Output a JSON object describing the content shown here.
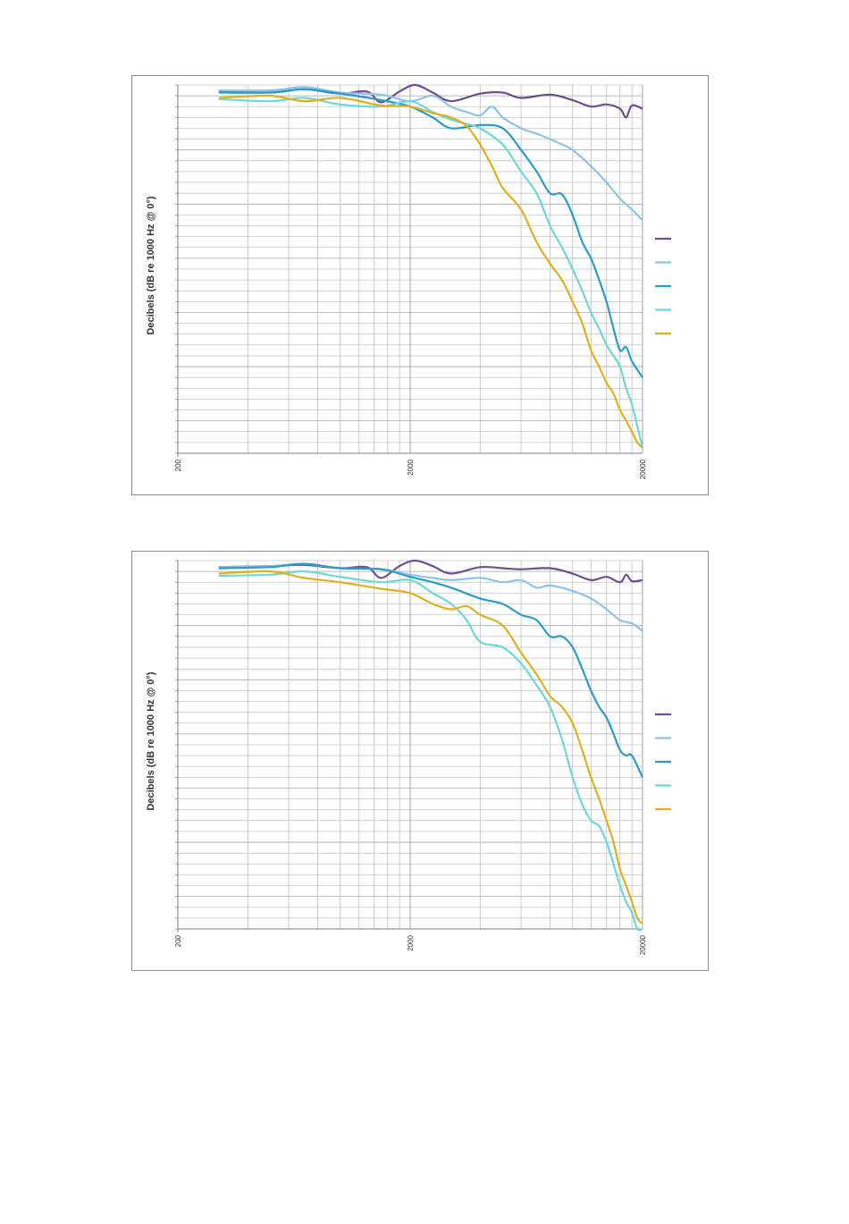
{
  "chart_data": [
    {
      "type": "line",
      "ylabel": "Decibels (dB re 1000 Hz @ 0°)",
      "xscale": "log",
      "xlim": [
        200,
        20000
      ],
      "xticks": [
        "200",
        "2000",
        "20000"
      ],
      "ylim": [
        -33,
        1
      ],
      "grid": true,
      "legend_position": "right",
      "series": [
        {
          "color": "#6b4f8f",
          "x": [
            300,
            500,
            700,
            1000,
            1300,
            1500,
            1800,
            2100,
            2500,
            3000,
            4000,
            5000,
            6000,
            8000,
            10000,
            12000,
            14000,
            16000,
            17000,
            18000,
            20000
          ],
          "y": [
            0.4,
            0.3,
            0.6,
            0.2,
            0.4,
            -0.6,
            0.4,
            1.0,
            0.3,
            -0.5,
            0.2,
            0.3,
            -0.2,
            0.1,
            -0.4,
            -1.0,
            -0.8,
            -1.2,
            -2.0,
            -0.9,
            -1.2
          ]
        },
        {
          "color": "#8cc4e8",
          "x": [
            300,
            500,
            700,
            1000,
            1500,
            2000,
            2500,
            3000,
            3500,
            4000,
            4500,
            5000,
            6000,
            7000,
            8000,
            9000,
            10000,
            12000,
            14000,
            16000,
            18000,
            20000
          ],
          "y": [
            0.5,
            0.5,
            0.8,
            0.3,
            0.1,
            -0.5,
            0.0,
            -1.0,
            -1.5,
            -1.8,
            -1.0,
            -2.0,
            -3.0,
            -3.5,
            -4.0,
            -4.5,
            -5.0,
            -6.5,
            -8.0,
            -9.5,
            -10.5,
            -11.5
          ]
        },
        {
          "color": "#2a9ccb",
          "x": [
            300,
            500,
            700,
            1000,
            1500,
            2000,
            2500,
            3000,
            4000,
            5000,
            6000,
            7000,
            8000,
            9000,
            10000,
            11000,
            12000,
            13000,
            14000,
            15000,
            16000,
            17000,
            18000,
            20000
          ],
          "y": [
            0.3,
            0.3,
            0.6,
            0.2,
            -0.4,
            -1.0,
            -2.0,
            -3.0,
            -2.7,
            -3.0,
            -5.0,
            -7.0,
            -9.0,
            -9.1,
            -11.0,
            -13.5,
            -15.0,
            -17.0,
            -19.0,
            -21.5,
            -23.5,
            -23.2,
            -24.5,
            -26.0
          ]
        },
        {
          "color": "#6fd6da",
          "x": [
            300,
            500,
            700,
            1000,
            1500,
            2000,
            2500,
            3000,
            3500,
            4000,
            5000,
            6000,
            7000,
            8000,
            9000,
            10000,
            11000,
            12000,
            13000,
            14000,
            15000,
            16000,
            17000,
            18000,
            20000
          ],
          "y": [
            -0.3,
            -0.5,
            -0.2,
            -0.8,
            -1.0,
            -0.5,
            -1.5,
            -2.2,
            -2.6,
            -3.0,
            -4.5,
            -7.0,
            -9.0,
            -12.0,
            -14.0,
            -16.0,
            -18.0,
            -20.0,
            -21.5,
            -23.0,
            -24.0,
            -25.0,
            -27.0,
            -28.5,
            -32.5
          ]
        },
        {
          "color": "#e0b020",
          "x": [
            300,
            500,
            700,
            1000,
            1500,
            2000,
            2500,
            3000,
            3500,
            4000,
            4500,
            5000,
            6000,
            7000,
            8000,
            9000,
            10000,
            11000,
            12000,
            13000,
            14000,
            15000,
            16000,
            17000,
            18000,
            19000,
            20000
          ],
          "y": [
            -0.2,
            0.0,
            -0.5,
            -0.2,
            -0.9,
            -1.0,
            -1.6,
            -2.0,
            -2.8,
            -4.5,
            -6.5,
            -8.5,
            -10.5,
            -13.5,
            -15.5,
            -17.0,
            -19.0,
            -21.0,
            -23.5,
            -25.0,
            -26.5,
            -27.5,
            -29.0,
            -30.0,
            -31.0,
            -32.0,
            -32.5
          ]
        }
      ]
    },
    {
      "type": "line",
      "ylabel": "Decibels (dB re 1000 Hz @ 0°)",
      "xscale": "log",
      "xlim": [
        200,
        20000
      ],
      "xticks": [
        "200",
        "2000",
        "20000"
      ],
      "ylim": [
        -33,
        1
      ],
      "grid": true,
      "legend_position": "right",
      "series": [
        {
          "color": "#6b4f8f",
          "x": [
            300,
            500,
            700,
            1000,
            1300,
            1500,
            1800,
            2100,
            2500,
            3000,
            4000,
            5000,
            6000,
            8000,
            10000,
            12000,
            14000,
            16000,
            17000,
            18000,
            20000
          ],
          "y": [
            0.4,
            0.5,
            0.6,
            0.3,
            0.4,
            -0.6,
            0.5,
            1.0,
            0.5,
            -0.2,
            0.4,
            0.3,
            0.2,
            0.3,
            -0.2,
            -0.8,
            -0.5,
            -1.0,
            -0.3,
            -0.9,
            -0.8
          ]
        },
        {
          "color": "#8cc4e8",
          "x": [
            300,
            500,
            700,
            1000,
            1500,
            2000,
            2500,
            3000,
            4000,
            5000,
            6000,
            7000,
            8000,
            10000,
            12000,
            14000,
            16000,
            18000,
            20000
          ],
          "y": [
            0.4,
            0.5,
            0.7,
            0.3,
            0.2,
            -0.3,
            -0.6,
            -0.8,
            -0.6,
            -1.0,
            -0.8,
            -1.5,
            -1.3,
            -1.8,
            -2.5,
            -3.5,
            -4.5,
            -4.8,
            -5.5
          ]
        },
        {
          "color": "#2a9ccb",
          "x": [
            300,
            500,
            700,
            1000,
            1500,
            2000,
            2500,
            3000,
            4000,
            5000,
            6000,
            7000,
            8000,
            9000,
            10000,
            11000,
            12000,
            13000,
            14000,
            15000,
            16000,
            17000,
            18000,
            20000
          ],
          "y": [
            0.3,
            0.4,
            0.7,
            0.3,
            0.2,
            -0.5,
            -1.0,
            -1.5,
            -2.5,
            -3.0,
            -4.0,
            -4.5,
            -6.0,
            -6.0,
            -7.0,
            -9.0,
            -11.0,
            -12.5,
            -13.5,
            -15.0,
            -16.5,
            -17.0,
            -17.0,
            -19.0
          ]
        },
        {
          "color": "#6fd6da",
          "x": [
            300,
            500,
            700,
            1000,
            1500,
            2000,
            2500,
            3000,
            3500,
            4000,
            5000,
            6000,
            7000,
            8000,
            9000,
            10000,
            11000,
            12000,
            13000,
            14000,
            15000,
            16000,
            17000,
            18000,
            19000,
            20000
          ],
          "y": [
            -0.4,
            -0.3,
            0.0,
            -0.5,
            -1.0,
            -0.8,
            -2.0,
            -3.0,
            -4.5,
            -6.5,
            -7.0,
            -8.5,
            -10.5,
            -12.5,
            -15.5,
            -19.0,
            -21.5,
            -23.0,
            -23.5,
            -25.0,
            -27.0,
            -29.0,
            -30.5,
            -31.5,
            -33.0,
            -33.0
          ]
        },
        {
          "color": "#e0b020",
          "x": [
            300,
            500,
            700,
            1000,
            1500,
            2000,
            2500,
            3000,
            3500,
            4000,
            5000,
            6000,
            7000,
            8000,
            9000,
            10000,
            11000,
            12000,
            13000,
            14000,
            15000,
            16000,
            17000,
            18000,
            19000,
            20000
          ],
          "y": [
            -0.2,
            0.0,
            -0.6,
            -1.0,
            -1.6,
            -2.0,
            -3.0,
            -3.5,
            -3.2,
            -4.0,
            -5.0,
            -7.5,
            -9.5,
            -11.5,
            -12.5,
            -14.0,
            -16.5,
            -19.0,
            -21.0,
            -23.0,
            -25.0,
            -27.5,
            -29.0,
            -30.5,
            -32.0,
            -32.5
          ]
        }
      ]
    }
  ]
}
